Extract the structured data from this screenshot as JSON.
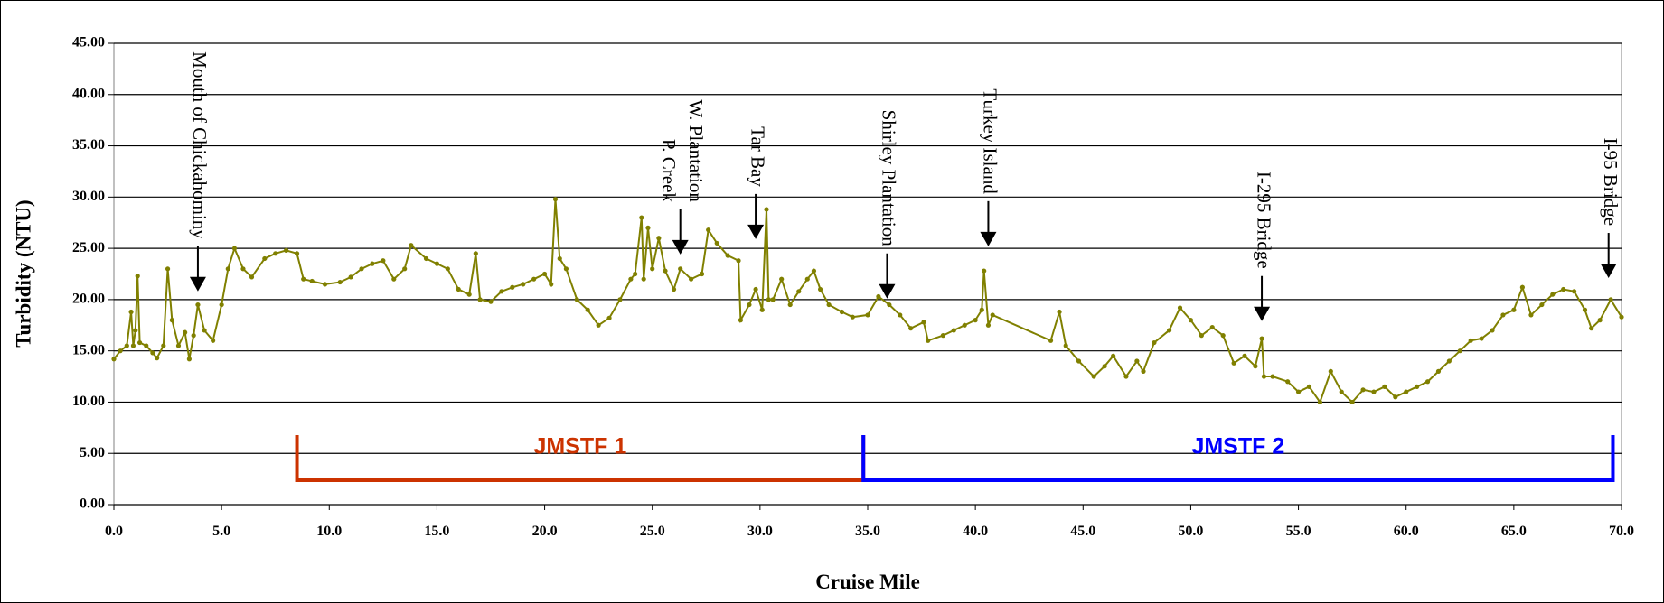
{
  "chart_data": {
    "type": "line",
    "x_label": "Cruise Mile",
    "y_label": "Turbidity (NTU)",
    "xlim": [
      0,
      70
    ],
    "ylim": [
      0,
      45
    ],
    "xticks": [
      {
        "value": 0,
        "label": "0.0"
      },
      {
        "value": 5,
        "label": "5.0"
      },
      {
        "value": 10,
        "label": "10.0"
      },
      {
        "value": 15,
        "label": "15.0"
      },
      {
        "value": 20,
        "label": "20.0"
      },
      {
        "value": 25,
        "label": "25.0"
      },
      {
        "value": 30,
        "label": "30.0"
      },
      {
        "value": 35,
        "label": "35.0"
      },
      {
        "value": 40,
        "label": "40.0"
      },
      {
        "value": 45,
        "label": "45.0"
      },
      {
        "value": 50,
        "label": "50.0"
      },
      {
        "value": 55,
        "label": "55.0"
      },
      {
        "value": 60,
        "label": "60.0"
      },
      {
        "value": 65,
        "label": "65.0"
      },
      {
        "value": 70,
        "label": "70.0"
      }
    ],
    "yticks": [
      {
        "value": 0,
        "label": "0.00"
      },
      {
        "value": 5,
        "label": "5.00"
      },
      {
        "value": 10,
        "label": "10.00"
      },
      {
        "value": 15,
        "label": "15.00"
      },
      {
        "value": 20,
        "label": "20.00"
      },
      {
        "value": 25,
        "label": "25.00"
      },
      {
        "value": 30,
        "label": "30.00"
      },
      {
        "value": 35,
        "label": "35.00"
      },
      {
        "value": 40,
        "label": "40.00"
      },
      {
        "value": 45,
        "label": "45.00"
      }
    ],
    "grid": true,
    "color": "#808000",
    "x": [
      0,
      0.3,
      0.6,
      0.8,
      0.9,
      1.0,
      1.1,
      1.2,
      1.5,
      1.8,
      2.0,
      2.3,
      2.5,
      2.7,
      3.0,
      3.3,
      3.5,
      3.7,
      3.9,
      4.2,
      4.6,
      5.0,
      5.3,
      5.6,
      6.0,
      6.4,
      7.0,
      7.5,
      8.0,
      8.5,
      8.8,
      9.2,
      9.8,
      10.5,
      11.0,
      11.5,
      12.0,
      12.5,
      13.0,
      13.5,
      13.8,
      14.5,
      15.0,
      15.5,
      16.0,
      16.5,
      16.8,
      17.0,
      17.5,
      18.0,
      18.5,
      19.0,
      19.5,
      20.0,
      20.3,
      20.5,
      20.7,
      21.0,
      21.5,
      22.0,
      22.5,
      23.0,
      23.5,
      24.0,
      24.2,
      24.5,
      24.6,
      24.8,
      25.0,
      25.3,
      25.6,
      26.0,
      26.3,
      26.8,
      27.3,
      27.6,
      28.0,
      28.5,
      29.0,
      29.1,
      29.5,
      29.8,
      30.1,
      30.3,
      30.4,
      30.6,
      31.0,
      31.4,
      31.8,
      32.2,
      32.5,
      32.8,
      33.2,
      33.8,
      34.3,
      35.0,
      35.5,
      36.0,
      36.5,
      37.0,
      37.6,
      37.8,
      38.5,
      39.0,
      39.5,
      40.0,
      40.3,
      40.4,
      40.6,
      40.8,
      43.5,
      43.9,
      44.2,
      44.8,
      45.5,
      46.0,
      46.4,
      47.0,
      47.5,
      47.8,
      48.3,
      49.0,
      49.5,
      50.0,
      50.5,
      51.0,
      51.5,
      52.0,
      52.5,
      53.0,
      53.3,
      53.4,
      53.8,
      54.5,
      55.0,
      55.5,
      56.0,
      56.5,
      57.0,
      57.5,
      58.0,
      58.5,
      59.0,
      59.5,
      60.0,
      60.5,
      61.0,
      61.5,
      62.0,
      62.5,
      63.0,
      63.5,
      64.0,
      64.5,
      65.0,
      65.4,
      65.8,
      66.3,
      66.8,
      67.3,
      67.8,
      68.3,
      68.6,
      69.0,
      69.5,
      70.0
    ],
    "values": [
      14.2,
      15,
      15.5,
      18.8,
      15.5,
      17,
      22.3,
      15.8,
      15.5,
      14.8,
      14.3,
      15.5,
      23,
      18,
      15.5,
      16.8,
      14.2,
      16.5,
      19.5,
      17,
      16,
      19.5,
      23,
      25,
      23,
      22.2,
      24,
      24.5,
      24.8,
      24.5,
      22,
      21.8,
      21.5,
      21.7,
      22.2,
      23,
      23.5,
      23.8,
      22,
      23,
      25.3,
      24,
      23.5,
      23,
      21,
      20.5,
      24.5,
      20,
      19.8,
      20.8,
      21.2,
      21.5,
      22,
      22.5,
      21.5,
      29.8,
      24,
      23,
      20,
      19,
      17.5,
      18.2,
      20,
      22,
      22.5,
      28,
      22,
      27,
      23,
      26,
      22.8,
      21,
      23,
      22,
      22.5,
      26.8,
      25.5,
      24.3,
      23.8,
      18,
      19.5,
      21,
      19,
      28.8,
      20,
      20,
      22,
      19.5,
      20.8,
      22,
      22.8,
      21,
      19.5,
      18.8,
      18.3,
      18.5,
      20.3,
      19.5,
      18.5,
      17.2,
      17.8,
      16,
      16.5,
      17,
      17.5,
      18,
      19,
      22.8,
      17.5,
      18.5,
      16,
      18.8,
      15.5,
      14,
      12.5,
      13.5,
      14.5,
      12.5,
      14,
      13,
      15.8,
      17,
      19.2,
      18,
      16.5,
      17.3,
      16.5,
      13.8,
      14.5,
      13.5,
      16.2,
      12.5,
      12.5,
      12,
      11,
      11.5,
      10,
      13,
      11,
      10,
      11.2,
      11,
      11.5,
      10.5,
      11,
      11.5,
      12,
      13,
      14,
      15,
      16,
      16.2,
      17,
      18.5,
      19,
      21.2,
      18.5,
      19.5,
      20.5,
      21,
      20.8,
      19,
      17.2,
      18,
      20,
      18.3
    ],
    "annotations": [
      {
        "lines": [
          "Mouth of Chickahominy"
        ],
        "x": 3.9,
        "y": 20.8
      },
      {
        "lines": [
          "W. Plantation",
          "P. Creek"
        ],
        "x": 26.3,
        "y": 24.4
      },
      {
        "lines": [
          "Tar Bay"
        ],
        "x": 29.8,
        "y": 25.9
      },
      {
        "lines": [
          "Shirley Plantation"
        ],
        "x": 35.9,
        "y": 20.1
      },
      {
        "lines": [
          "Turkey Island"
        ],
        "x": 40.6,
        "y": 25.2
      },
      {
        "lines": [
          "I-295 Bridge"
        ],
        "x": 53.3,
        "y": 17.9
      },
      {
        "lines": [
          "I-95 Bridge"
        ],
        "x": 69.4,
        "y": 22.1
      }
    ],
    "ranges": [
      {
        "label": "JMSTF 1",
        "start": 8.5,
        "end": 34.8,
        "color": "#cc3300"
      },
      {
        "label": "JMSTF 2",
        "start": 34.8,
        "end": 69.6,
        "color": "#0000ff"
      }
    ]
  }
}
